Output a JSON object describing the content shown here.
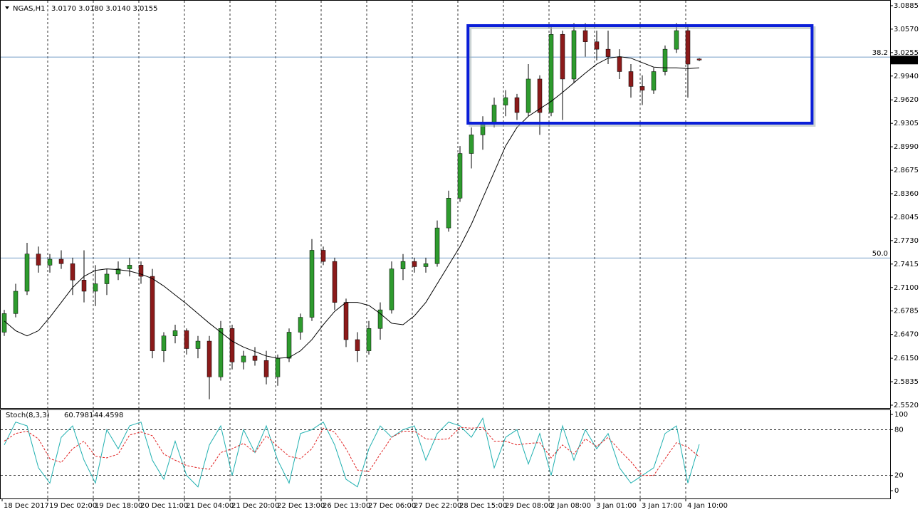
{
  "header": {
    "symbol": "NGAS,H1",
    "ohlc": "3.0170 3.0180 3.0140 3.0155"
  },
  "chart_data": [
    {
      "type": "candlestick",
      "bull_color": "#2e9b2e",
      "bear_color": "#8b1a1a",
      "ma_color": "#000000",
      "ylim": [
        2.5491,
        3.0942
      ],
      "yticks": [
        3.0885,
        {
          "value": 3.057,
          "label": "3.0570"
        },
        3.0255,
        {
          "value": 2.994,
          "label": "2.9940"
        },
        {
          "value": 2.962,
          "label": "2.9620"
        },
        2.9305,
        {
          "value": 2.899,
          "label": "2.8990"
        },
        2.8675,
        {
          "value": 2.836,
          "label": "2.8360"
        },
        2.8045,
        {
          "value": 2.773,
          "label": "2.7730"
        },
        2.7415,
        {
          "value": 2.71,
          "label": "2.7100"
        },
        2.6785,
        {
          "value": 2.647,
          "label": "2.6470"
        },
        {
          "value": 2.615,
          "label": "2.6150"
        },
        2.5835,
        {
          "value": 2.552,
          "label": "2.5520"
        }
      ],
      "categories": [
        "18 Dec 2017",
        null,
        null,
        null,
        "19 Dec 02:00",
        null,
        null,
        null,
        "19 Dec 18:00",
        null,
        null,
        null,
        "20 Dec 11:00",
        null,
        null,
        null,
        "21 Dec 04:00",
        null,
        null,
        null,
        "21 Dec 20:00",
        null,
        null,
        null,
        "22 Dec 13:00",
        null,
        null,
        null,
        "26 Dec 13:00",
        null,
        null,
        null,
        "27 Dec 06:00",
        null,
        null,
        null,
        "27 Dec 22:00",
        null,
        null,
        null,
        "28 Dec 15:00",
        null,
        null,
        null,
        "29 Dec 08:00",
        null,
        null,
        null,
        "2 Jan 08:00",
        null,
        null,
        null,
        "3 Jan 01:00",
        null,
        null,
        null,
        "3 Jan 17:00",
        null,
        null,
        null,
        "4 Jan 10:00",
        null
      ],
      "candles": [
        {
          "o": 2.65,
          "h": 2.68,
          "l": 2.645,
          "c": 2.675
        },
        {
          "o": 2.675,
          "h": 2.715,
          "l": 2.67,
          "c": 2.705
        },
        {
          "o": 2.705,
          "h": 2.77,
          "l": 2.7,
          "c": 2.755
        },
        {
          "o": 2.755,
          "h": 2.765,
          "l": 2.73,
          "c": 2.74
        },
        {
          "o": 2.74,
          "h": 2.755,
          "l": 2.73,
          "c": 2.748
        },
        {
          "o": 2.748,
          "h": 2.76,
          "l": 2.735,
          "c": 2.742
        },
        {
          "o": 2.742,
          "h": 2.75,
          "l": 2.7,
          "c": 2.72
        },
        {
          "o": 2.72,
          "h": 2.76,
          "l": 2.69,
          "c": 2.705
        },
        {
          "o": 2.705,
          "h": 2.74,
          "l": 2.685,
          "c": 2.715
        },
        {
          "o": 2.715,
          "h": 2.735,
          "l": 2.7,
          "c": 2.728
        },
        {
          "o": 2.728,
          "h": 2.745,
          "l": 2.72,
          "c": 2.735
        },
        {
          "o": 2.735,
          "h": 2.75,
          "l": 2.725,
          "c": 2.74
        },
        {
          "o": 2.74,
          "h": 2.745,
          "l": 2.715,
          "c": 2.725
        },
        {
          "o": 2.725,
          "h": 2.735,
          "l": 2.615,
          "c": 2.625
        },
        {
          "o": 2.625,
          "h": 2.65,
          "l": 2.61,
          "c": 2.645
        },
        {
          "o": 2.645,
          "h": 2.66,
          "l": 2.635,
          "c": 2.652
        },
        {
          "o": 2.652,
          "h": 2.655,
          "l": 2.62,
          "c": 2.628
        },
        {
          "o": 2.628,
          "h": 2.645,
          "l": 2.615,
          "c": 2.638
        },
        {
          "o": 2.638,
          "h": 2.645,
          "l": 2.56,
          "c": 2.59
        },
        {
          "o": 2.59,
          "h": 2.665,
          "l": 2.585,
          "c": 2.655
        },
        {
          "o": 2.655,
          "h": 2.66,
          "l": 2.6,
          "c": 2.61
        },
        {
          "o": 2.61,
          "h": 2.625,
          "l": 2.6,
          "c": 2.618
        },
        {
          "o": 2.618,
          "h": 2.63,
          "l": 2.605,
          "c": 2.612
        },
        {
          "o": 2.612,
          "h": 2.625,
          "l": 2.58,
          "c": 2.59
        },
        {
          "o": 2.59,
          "h": 2.62,
          "l": 2.578,
          "c": 2.615
        },
        {
          "o": 2.615,
          "h": 2.655,
          "l": 2.61,
          "c": 2.65
        },
        {
          "o": 2.65,
          "h": 2.675,
          "l": 2.64,
          "c": 2.67
        },
        {
          "o": 2.67,
          "h": 2.775,
          "l": 2.665,
          "c": 2.76
        },
        {
          "o": 2.76,
          "h": 2.765,
          "l": 2.74,
          "c": 2.745
        },
        {
          "o": 2.745,
          "h": 2.75,
          "l": 2.68,
          "c": 2.69
        },
        {
          "o": 2.69,
          "h": 2.695,
          "l": 2.63,
          "c": 2.64
        },
        {
          "o": 2.64,
          "h": 2.65,
          "l": 2.61,
          "c": 2.625
        },
        {
          "o": 2.625,
          "h": 2.665,
          "l": 2.62,
          "c": 2.655
        },
        {
          "o": 2.655,
          "h": 2.69,
          "l": 2.64,
          "c": 2.68
        },
        {
          "o": 2.68,
          "h": 2.745,
          "l": 2.675,
          "c": 2.735
        },
        {
          "o": 2.735,
          "h": 2.755,
          "l": 2.72,
          "c": 2.745
        },
        {
          "o": 2.745,
          "h": 2.75,
          "l": 2.73,
          "c": 2.738
        },
        {
          "o": 2.738,
          "h": 2.75,
          "l": 2.73,
          "c": 2.742
        },
        {
          "o": 2.742,
          "h": 2.8,
          "l": 2.738,
          "c": 2.79
        },
        {
          "o": 2.79,
          "h": 2.84,
          "l": 2.785,
          "c": 2.83
        },
        {
          "o": 2.83,
          "h": 2.9,
          "l": 2.825,
          "c": 2.89
        },
        {
          "o": 2.89,
          "h": 2.925,
          "l": 2.87,
          "c": 2.915
        },
        {
          "o": 2.915,
          "h": 2.94,
          "l": 2.895,
          "c": 2.93
        },
        {
          "o": 2.93,
          "h": 2.965,
          "l": 2.925,
          "c": 2.955
        },
        {
          "o": 2.955,
          "h": 2.975,
          "l": 2.94,
          "c": 2.965
        },
        {
          "o": 2.965,
          "h": 2.97,
          "l": 2.935,
          "c": 2.945
        },
        {
          "o": 2.945,
          "h": 3.01,
          "l": 2.94,
          "c": 2.99
        },
        {
          "o": 2.99,
          "h": 2.995,
          "l": 2.915,
          "c": 2.945
        },
        {
          "o": 2.945,
          "h": 3.06,
          "l": 2.94,
          "c": 3.05
        },
        {
          "o": 3.05,
          "h": 3.055,
          "l": 2.935,
          "c": 2.99
        },
        {
          "o": 2.99,
          "h": 3.065,
          "l": 2.985,
          "c": 3.055
        },
        {
          "o": 3.055,
          "h": 3.065,
          "l": 3.02,
          "c": 3.04
        },
        {
          "o": 3.04,
          "h": 3.055,
          "l": 3.015,
          "c": 3.03
        },
        {
          "o": 3.03,
          "h": 3.055,
          "l": 3.01,
          "c": 3.02
        },
        {
          "o": 3.02,
          "h": 3.03,
          "l": 2.99,
          "c": 3.0
        },
        {
          "o": 3.0,
          "h": 3.01,
          "l": 2.965,
          "c": 2.98
        },
        {
          "o": 2.98,
          "h": 2.995,
          "l": 2.955,
          "c": 2.975
        },
        {
          "o": 2.975,
          "h": 3.005,
          "l": 2.97,
          "c": 3.0
        },
        {
          "o": 3.0,
          "h": 3.035,
          "l": 2.995,
          "c": 3.03
        },
        {
          "o": 3.03,
          "h": 3.065,
          "l": 3.025,
          "c": 3.055
        },
        {
          "o": 3.055,
          "h": 3.06,
          "l": 2.965,
          "c": 3.01
        },
        {
          "o": 3.017,
          "h": 3.018,
          "l": 3.014,
          "c": 3.0155
        }
      ],
      "ma": [
        2.665,
        2.652,
        2.645,
        2.652,
        2.67,
        2.69,
        2.71,
        2.725,
        2.733,
        2.735,
        2.734,
        2.732,
        2.728,
        2.722,
        2.712,
        2.7,
        2.688,
        2.675,
        2.662,
        2.65,
        2.638,
        2.63,
        2.624,
        2.618,
        2.615,
        2.616,
        2.625,
        2.64,
        2.66,
        2.678,
        2.69,
        2.69,
        2.686,
        2.675,
        2.662,
        2.66,
        2.672,
        2.69,
        2.715,
        2.74,
        2.765,
        2.795,
        2.83,
        2.865,
        2.9,
        2.925,
        2.94,
        2.95,
        2.96,
        2.972,
        2.985,
        2.998,
        3.01,
        3.018,
        3.02,
        3.018,
        3.012,
        3.006,
        3.005,
        3.005,
        3.004,
        3.005
      ],
      "levels": [
        {
          "label": "38.2",
          "value": 3.0195
        },
        {
          "label": "50.0",
          "value": 2.7497
        }
      ],
      "level_color": "#4a7fb5",
      "box": {
        "bars": [
          40.7,
          70.9
        ],
        "prices": [
          2.9307,
          3.0617
        ],
        "color": "#0a1ed8"
      }
    },
    {
      "type": "line",
      "name": "Stoch(8,3,3)",
      "ylim": [
        -10.2,
        105.6
      ],
      "yticks": [
        100,
        80,
        20,
        0
      ],
      "levels": [
        80,
        20
      ],
      "series": [
        {
          "color": "#1fb0b0",
          "values": [
            60,
            90,
            85,
            30,
            10,
            70,
            85,
            40,
            10,
            80,
            55,
            85,
            90,
            40,
            15,
            65,
            20,
            5,
            60,
            85,
            20,
            80,
            50,
            85,
            40,
            10,
            75,
            80,
            90,
            60,
            15,
            5,
            55,
            85,
            70,
            80,
            85,
            40,
            75,
            90,
            85,
            70,
            95,
            30,
            70,
            80,
            35,
            75,
            20,
            85,
            40,
            80,
            55,
            75,
            30,
            10,
            20,
            30,
            75,
            85,
            10,
            60.7981
          ]
        },
        {
          "color": "#e02020",
          "dashed": true,
          "values": [
            65,
            75,
            78,
            68,
            42,
            37,
            55,
            65,
            45,
            43,
            48,
            73,
            77,
            72,
            48,
            40,
            33,
            30,
            28,
            50,
            55,
            62,
            50,
            72,
            58,
            45,
            42,
            55,
            82,
            77,
            55,
            27,
            25,
            48,
            70,
            78,
            78,
            68,
            67,
            68,
            83,
            82,
            83,
            65,
            65,
            60,
            62,
            63,
            43,
            60,
            48,
            68,
            58,
            70,
            53,
            38,
            20,
            20,
            42,
            63,
            57,
            44.4598
          ]
        }
      ]
    }
  ]
}
